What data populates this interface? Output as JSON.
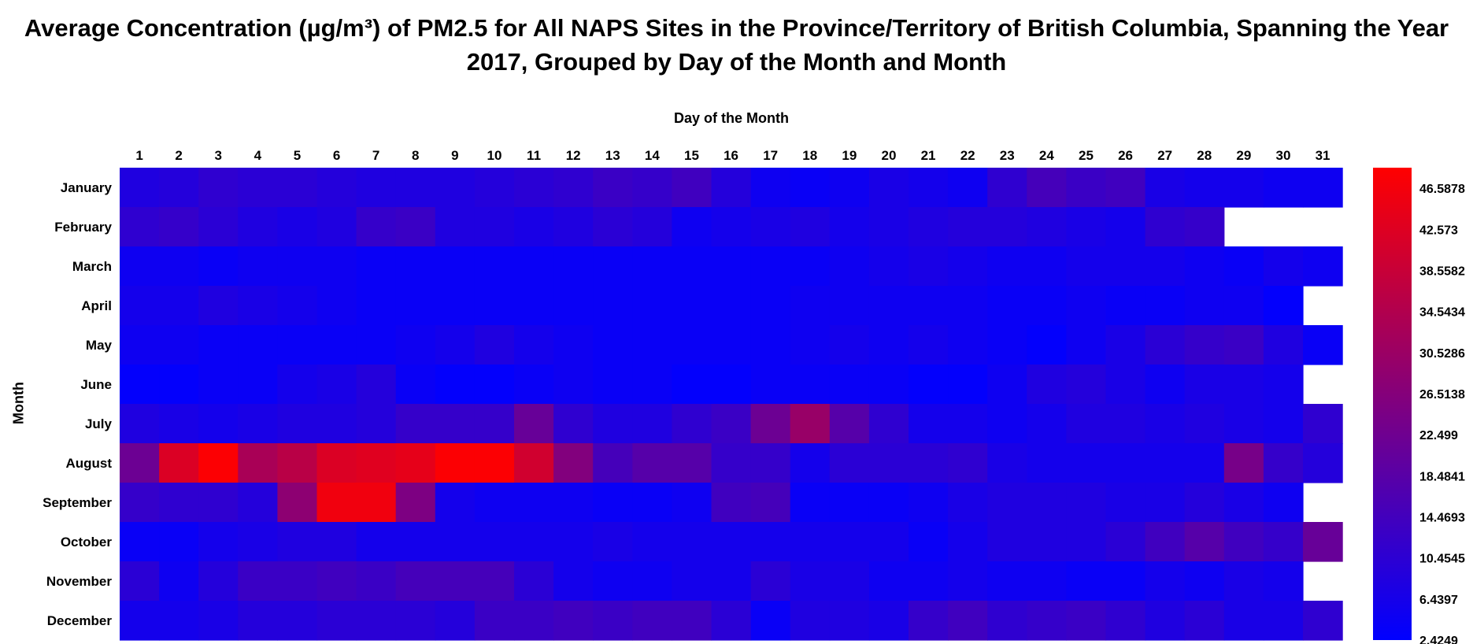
{
  "chart_data": {
    "type": "heatmap",
    "title_line1": "Average Concentration (µg/m³) of PM2.5 for All NAPS Sites in the Province/Territory of British Columbia, Spanning the Year",
    "title_line2": "2017, Grouped by Day of the Month and Month",
    "xlabel": "Day of the Month",
    "ylabel": "Month",
    "x_categories": [
      "1",
      "2",
      "3",
      "4",
      "5",
      "6",
      "7",
      "8",
      "9",
      "10",
      "11",
      "12",
      "13",
      "14",
      "15",
      "16",
      "17",
      "18",
      "19",
      "20",
      "21",
      "22",
      "23",
      "24",
      "25",
      "26",
      "27",
      "28",
      "29",
      "30",
      "31"
    ],
    "y_categories": [
      "January",
      "February",
      "March",
      "April",
      "May",
      "June",
      "July",
      "August",
      "September",
      "October",
      "November",
      "December"
    ],
    "colorbar": {
      "min": 2.4249,
      "max": 48.5951,
      "ticks": [
        46.5878,
        42.573,
        38.5582,
        34.5434,
        30.5286,
        26.5138,
        22.499,
        18.4841,
        14.4693,
        10.4545,
        6.4397,
        2.4249
      ],
      "low_color": "#0000ff",
      "high_color": "#ff0000"
    },
    "values": [
      [
        8,
        9,
        11,
        10,
        10,
        9,
        8,
        8,
        8,
        9,
        10,
        11,
        13,
        12,
        14,
        9,
        5,
        4,
        5,
        7,
        6,
        5,
        11,
        15,
        13,
        14,
        7,
        6,
        6,
        5,
        5
      ],
      [
        11,
        12,
        10,
        8,
        7,
        8,
        12,
        13,
        8,
        8,
        7,
        8,
        10,
        9,
        5,
        6,
        7,
        8,
        6,
        7,
        8,
        9,
        9,
        8,
        7,
        6,
        11,
        12,
        null,
        null,
        null
      ],
      [
        5,
        5,
        4,
        5,
        5,
        5,
        4,
        4,
        4,
        4,
        4,
        4,
        4,
        4,
        4,
        4,
        4,
        4,
        5,
        6,
        7,
        6,
        5,
        5,
        6,
        6,
        6,
        5,
        4,
        6,
        5
      ],
      [
        6,
        6,
        8,
        7,
        6,
        5,
        4,
        4,
        4,
        4,
        4,
        4,
        4,
        4,
        4,
        4,
        4,
        5,
        5,
        5,
        5,
        5,
        4,
        4,
        5,
        4,
        4,
        5,
        5,
        3,
        null
      ],
      [
        5,
        5,
        4,
        4,
        4,
        4,
        4,
        5,
        6,
        8,
        6,
        5,
        4,
        4,
        4,
        4,
        4,
        5,
        6,
        5,
        6,
        5,
        4,
        3,
        5,
        7,
        10,
        12,
        13,
        8,
        4
      ],
      [
        3,
        3,
        4,
        4,
        6,
        7,
        9,
        4,
        3,
        3,
        4,
        5,
        4,
        4,
        3,
        3,
        4,
        4,
        4,
        4,
        3,
        3,
        5,
        8,
        9,
        7,
        5,
        7,
        7,
        6,
        null
      ],
      [
        8,
        7,
        6,
        7,
        8,
        8,
        9,
        12,
        12,
        12,
        21,
        11,
        8,
        8,
        11,
        13,
        22,
        30,
        18,
        11,
        6,
        6,
        5,
        6,
        8,
        8,
        7,
        8,
        7,
        6,
        11
      ],
      [
        22,
        42,
        48,
        33,
        36,
        42,
        43,
        44,
        48,
        48,
        40,
        26,
        15,
        18,
        18,
        12,
        12,
        6,
        10,
        10,
        10,
        11,
        7,
        6,
        6,
        6,
        6,
        6,
        24,
        12,
        9
      ],
      [
        12,
        11,
        11,
        9,
        28,
        46,
        46,
        25,
        6,
        5,
        5,
        5,
        4,
        4,
        5,
        14,
        15,
        4,
        4,
        4,
        5,
        7,
        8,
        8,
        8,
        7,
        7,
        9,
        7,
        5,
        null
      ],
      [
        4,
        4,
        6,
        7,
        8,
        8,
        6,
        6,
        6,
        6,
        6,
        6,
        7,
        6,
        6,
        6,
        6,
        6,
        6,
        6,
        4,
        6,
        8,
        8,
        8,
        10,
        14,
        18,
        14,
        12,
        21
      ],
      [
        10,
        5,
        9,
        13,
        13,
        14,
        13,
        15,
        15,
        15,
        10,
        6,
        5,
        5,
        6,
        6,
        10,
        7,
        7,
        5,
        5,
        6,
        5,
        5,
        4,
        4,
        6,
        5,
        7,
        6,
        null
      ],
      [
        6,
        6,
        7,
        9,
        9,
        10,
        10,
        10,
        9,
        13,
        13,
        14,
        13,
        14,
        14,
        10,
        4,
        8,
        8,
        7,
        12,
        14,
        11,
        12,
        13,
        11,
        8,
        10,
        7,
        7,
        11
      ]
    ]
  }
}
